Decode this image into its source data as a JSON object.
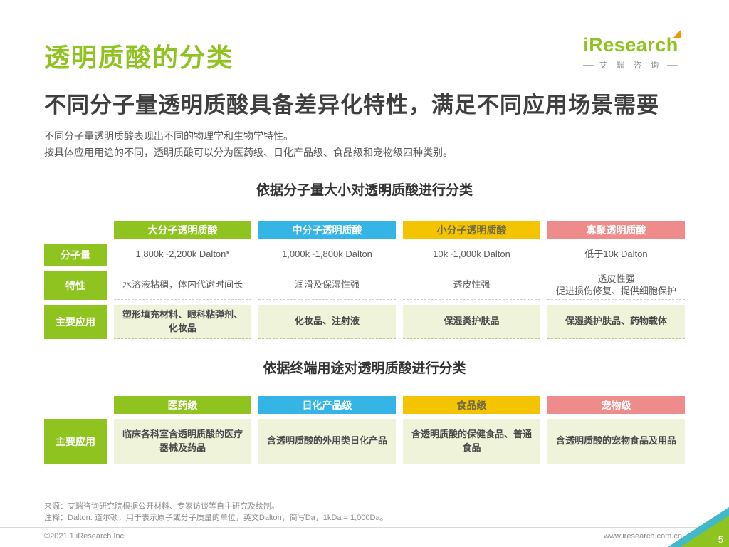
{
  "header": {
    "title": "透明质酸的分类",
    "subtitle": "不同分子量透明质酸具备差异化特性，满足不同应用场景需要",
    "body_lines": [
      "不同分子量透明质酸表现出不同的物理学和生物学特性。",
      "按具体应用用途的不同，透明质酸可以分为医药级、日化产品级、食品级和宠物级四种类别。"
    ],
    "logo": {
      "brand": "iResearch",
      "brand_cn": "艾 瑞 咨 询"
    }
  },
  "colors": {
    "brand_green": "#8fc31f",
    "cyan": "#35b5e6",
    "yellow": "#f5c400",
    "pink": "#ee8c8c",
    "app_cell_bg": "#eef3da",
    "corner_teal": "#41b9c9"
  },
  "section1": {
    "title_prefix": "依据",
    "title_underline": "分子量大小",
    "title_suffix": "对透明质酸进行分类",
    "row_labels": [
      "分子量",
      "特性",
      "主要应用"
    ],
    "columns": [
      {
        "header": "大分子透明质酸",
        "color": "#8fc31f",
        "header_text": "#ffffff",
        "molecular_weight": "1,800k~2,200k Dalton*",
        "feature": "水溶液粘稠，体内代谢时间长",
        "application": "塑形填充材料、眼科粘弹剂、化妆品"
      },
      {
        "header": "中分子透明质酸",
        "color": "#35b5e6",
        "header_text": "#ffffff",
        "molecular_weight": "1,000k~1,800k Dalton",
        "feature": "润滑及保湿性强",
        "application": "化妆品、注射液"
      },
      {
        "header": "小分子透明质酸",
        "color": "#f5c400",
        "header_text": "#6e6a45",
        "molecular_weight": "10k~1,000k Dalton",
        "feature": "透皮性强",
        "application": "保湿类护肤品"
      },
      {
        "header": "寡聚透明质酸",
        "color": "#ee8c8c",
        "header_text": "#ffffff",
        "molecular_weight": "低于10k Dalton",
        "feature": "透皮性强\n促进损伤修复、提供细胞保护",
        "application": "保湿类护肤品、药物载体"
      }
    ]
  },
  "section2": {
    "title_prefix": "依据",
    "title_underline": "终端用途",
    "title_suffix": "对透明质酸进行分类",
    "row_label": "主要应用",
    "columns": [
      {
        "header": "医药级",
        "color": "#8fc31f",
        "header_text": "#ffffff",
        "application": "临床各科室含透明质酸的医疗器械及药品"
      },
      {
        "header": "日化产品级",
        "color": "#35b5e6",
        "header_text": "#ffffff",
        "application": "含透明质酸的外用类日化产品"
      },
      {
        "header": "食品级",
        "color": "#f5c400",
        "header_text": "#6e6a45",
        "application": "含透明质酸的保健食品、普通食品"
      },
      {
        "header": "宠物级",
        "color": "#ee8c8c",
        "header_text": "#ffffff",
        "application": "含透明质酸的宠物食品及用品"
      }
    ]
  },
  "footer": {
    "source": "来源：艾瑞咨询研究院根据公开材料、专家访谈等自主研究及绘制。",
    "note": "注释：Dalton: 道尔顿，用于表示原子或分子质量的单位，英文Dalton，简写Da，1kDa = 1,000Da。",
    "copyright": "©2021.1 iResearch Inc.",
    "website": "www.iresearch.com.cn",
    "page_number": "5"
  }
}
